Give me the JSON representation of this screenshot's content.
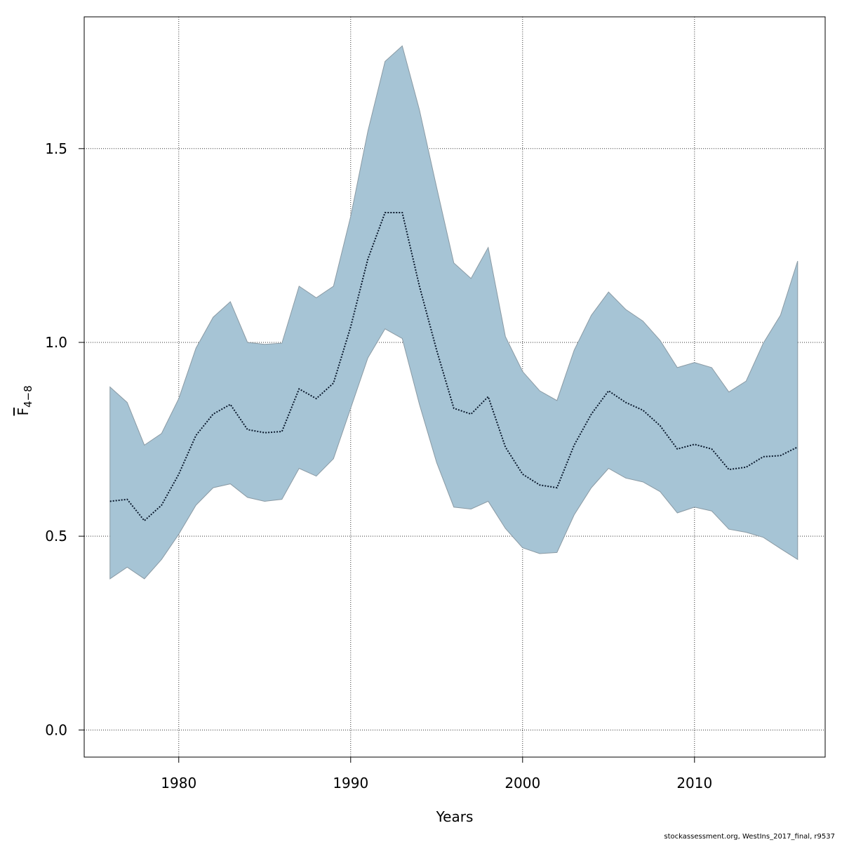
{
  "chart_data": {
    "type": "area",
    "xlabel": "Years",
    "ylabel_base": "F",
    "ylabel_subscript": "4−8",
    "xlim": [
      1974.5,
      2017.6
    ],
    "ylim": [
      -0.07,
      1.84
    ],
    "x_ticks": [
      1980,
      1990,
      2000,
      2010
    ],
    "y_ticks": [
      0.0,
      0.5,
      1.0,
      1.5
    ],
    "y_tick_labels": [
      "0.0",
      "0.5",
      "1.0",
      "1.5"
    ],
    "grid": true,
    "colors": {
      "band": "#a6c4d5",
      "band_edge": "#8a9aa4",
      "line": "#0b1a2e",
      "grid": "#333333"
    },
    "x": [
      1976,
      1977,
      1978,
      1979,
      1980,
      1981,
      1982,
      1983,
      1984,
      1985,
      1986,
      1987,
      1988,
      1989,
      1990,
      1991,
      1992,
      1993,
      1994,
      1995,
      1996,
      1997,
      1998,
      1999,
      2000,
      2001,
      2002,
      2003,
      2004,
      2005,
      2006,
      2007,
      2008,
      2009,
      2010,
      2011,
      2012,
      2013,
      2014,
      2015,
      2016
    ],
    "series": [
      {
        "name": "estimate",
        "values": [
          0.59,
          0.595,
          0.54,
          0.58,
          0.66,
          0.76,
          0.815,
          0.84,
          0.775,
          0.767,
          0.77,
          0.88,
          0.855,
          0.895,
          1.04,
          1.215,
          1.335,
          1.335,
          1.145,
          0.98,
          0.83,
          0.815,
          0.86,
          0.73,
          0.66,
          0.632,
          0.625,
          0.735,
          0.815,
          0.875,
          0.845,
          0.825,
          0.785,
          0.725,
          0.737,
          0.725,
          0.672,
          0.678,
          0.705,
          0.708,
          0.73
        ]
      },
      {
        "name": "lower",
        "values": [
          0.39,
          0.42,
          0.39,
          0.44,
          0.505,
          0.58,
          0.625,
          0.635,
          0.6,
          0.59,
          0.595,
          0.675,
          0.655,
          0.7,
          0.83,
          0.96,
          1.035,
          1.01,
          0.84,
          0.69,
          0.575,
          0.57,
          0.59,
          0.52,
          0.47,
          0.455,
          0.458,
          0.555,
          0.625,
          0.675,
          0.65,
          0.64,
          0.615,
          0.56,
          0.575,
          0.565,
          0.518,
          0.51,
          0.497,
          0.468,
          0.44
        ]
      },
      {
        "name": "upper",
        "values": [
          0.885,
          0.845,
          0.735,
          0.765,
          0.855,
          0.985,
          1.065,
          1.105,
          1.0,
          0.995,
          0.998,
          1.145,
          1.115,
          1.145,
          1.325,
          1.545,
          1.725,
          1.765,
          1.6,
          1.4,
          1.205,
          1.165,
          1.245,
          1.015,
          0.925,
          0.875,
          0.85,
          0.98,
          1.07,
          1.13,
          1.085,
          1.055,
          1.005,
          0.935,
          0.948,
          0.935,
          0.872,
          0.9,
          0.998,
          1.07,
          1.21
        ]
      }
    ]
  },
  "footer": "stockassessment.org, WestIns_2017_final, r9537"
}
